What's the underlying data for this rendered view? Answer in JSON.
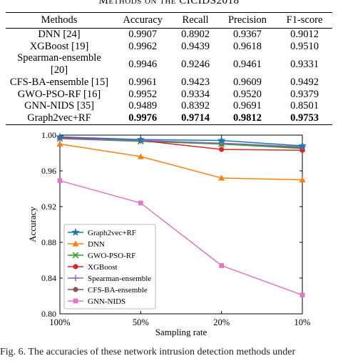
{
  "table": {
    "title": "Methods on the CICIDS2018",
    "headers": [
      "Methods",
      "Accuracy",
      "Recall",
      "Precision",
      "F1-score"
    ],
    "rows": [
      [
        "DNN [24]",
        "0.9907",
        "0.8902",
        "0.9367",
        "0.9012"
      ],
      [
        "XGBoost [19]",
        "0.9962",
        "0.9439",
        "0.9618",
        "0.9510"
      ],
      [
        "Spearman-ensemble [20]",
        "0.9946",
        "0.9246",
        "0.9461",
        "0.9331"
      ],
      [
        "CFS-BA-ensemble [15]",
        "0.9961",
        "0.9423",
        "0.9609",
        "0.9492"
      ],
      [
        "GWO-PSO-RF [16]",
        "0.9952",
        "0.9334",
        "0.9520",
        "0.9379"
      ],
      [
        "GNN-NIDS [35]",
        "0.9489",
        "0.8392",
        "0.9691",
        "0.8501"
      ],
      [
        "Graph2vec+RF",
        "0.9976",
        "0.9714",
        "0.9812",
        "0.9753"
      ]
    ]
  },
  "chart_data": {
    "type": "line",
    "xlabel": "Sampling rate",
    "ylabel": "Accuracy",
    "categories": [
      "100%",
      "50%",
      "20%",
      "10%"
    ],
    "ylim": [
      0.8,
      1.0
    ],
    "yticks": [
      "0.80",
      "0.84",
      "0.88",
      "0.92",
      "0.96",
      "1.00"
    ],
    "grid": false,
    "legend_position": "lower-left",
    "series": [
      {
        "name": "Graph2vec+RF",
        "marker": "star",
        "color": "#1f77b4",
        "values": [
          0.998,
          0.995,
          0.994,
          0.988
        ]
      },
      {
        "name": "DNN",
        "marker": "triangle",
        "color": "#ff7f0e",
        "values": [
          0.99,
          0.976,
          0.952,
          0.95
        ]
      },
      {
        "name": "GWO-PSO-RF",
        "marker": "x",
        "color": "#2ca02c",
        "values": [
          0.996,
          0.993,
          0.99,
          0.985
        ]
      },
      {
        "name": "XGBoost",
        "marker": "circle",
        "color": "#d62728",
        "values": [
          0.997,
          0.994,
          0.984,
          0.983
        ]
      },
      {
        "name": "Spearman-ensemble",
        "marker": "plus",
        "color": "#9467bd",
        "values": [
          0.996,
          0.994,
          0.991,
          0.987
        ]
      },
      {
        "name": "CFS-BA-ensemble",
        "marker": "circle",
        "color": "#8c564b",
        "values": [
          0.997,
          0.994,
          0.99,
          0.986
        ]
      },
      {
        "name": "GNN-NIDS",
        "marker": "square",
        "color": "#e377c2",
        "values": [
          0.949,
          0.924,
          0.854,
          0.821
        ]
      }
    ]
  },
  "caption": "Fig. 6.   The accuracies of these network intrusion detection methods under"
}
